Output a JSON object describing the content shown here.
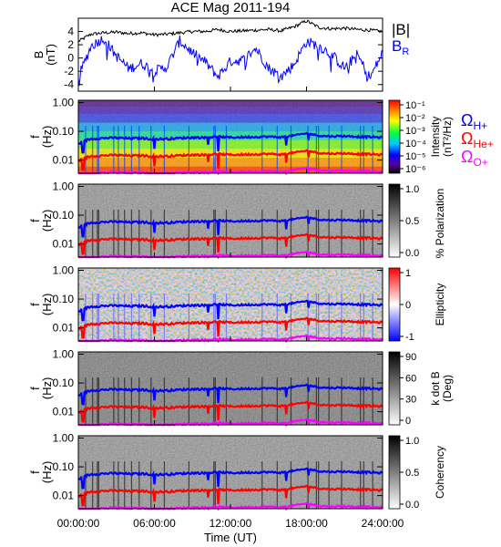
{
  "chart_data": {
    "type": "spectrogram-stack",
    "title": "ACE Mag 2011-194",
    "x_axis": {
      "label": "Time (UT)",
      "range_hours": [
        0,
        24
      ],
      "ticks": [
        {
          "hour": 0,
          "label": "00:00:00"
        },
        {
          "hour": 6,
          "label": "06:00:00"
        },
        {
          "hour": 12,
          "label": "12:00:00"
        },
        {
          "hour": 18,
          "label": "18:00:00"
        },
        {
          "hour": 24,
          "label": "24:00:00"
        }
      ]
    },
    "top_panel": {
      "y_label": "B",
      "y_unit": "(nT)",
      "ylim": [
        -5,
        6
      ],
      "yticks": [
        "4",
        "2",
        "0",
        "-2",
        "-4"
      ],
      "ytick_values": [
        4,
        2,
        0,
        -2,
        -4
      ],
      "series": [
        {
          "name": "|B|",
          "color": "#000000",
          "hours": [
            0,
            1,
            2,
            3,
            4,
            5,
            6,
            7,
            8,
            9,
            10,
            11,
            12,
            13,
            14,
            15,
            16,
            17,
            18,
            19,
            20,
            21,
            22,
            23,
            24
          ],
          "values": [
            2.5,
            3.6,
            3.8,
            3.9,
            3.7,
            3.8,
            3.5,
            3.6,
            3.8,
            4.0,
            4.0,
            4.3,
            4.0,
            4.1,
            4.2,
            4.3,
            4.1,
            4.7,
            5.6,
            4.6,
            4.4,
            4.5,
            4.3,
            4.2,
            4.0
          ]
        },
        {
          "name": "B_R",
          "color": "#0000ff",
          "hours": [
            0,
            1,
            2,
            3,
            4,
            5,
            6,
            7,
            8,
            9,
            10,
            11,
            12,
            13,
            14,
            15,
            16,
            17,
            18,
            19,
            20,
            21,
            22,
            23,
            24
          ],
          "values": [
            -3.0,
            1.8,
            3.0,
            0.3,
            -1.6,
            -0.8,
            -2.0,
            -1.3,
            2.6,
            0.8,
            -0.6,
            -2.8,
            -0.5,
            -0.3,
            1.5,
            -1.5,
            -2.8,
            -1.0,
            2.5,
            1.8,
            0.5,
            -1.5,
            0.5,
            -3.0,
            0.8
          ]
        }
      ]
    },
    "spectral_panels": [
      {
        "id": "intensity",
        "color_label": "Intensity",
        "color_unit": "(nT²/Hz)",
        "colormap": "rainbow",
        "scale_ticks": [
          "10⁻¹",
          "10⁻²",
          "10⁻³",
          "10⁻⁴",
          "10⁻⁵",
          "10⁻⁶"
        ]
      },
      {
        "id": "polarization",
        "color_label": "% Polarization",
        "colormap": "gray",
        "scale_ticks": [
          "1.0",
          "0.5",
          "0.0"
        ]
      },
      {
        "id": "ellipticity",
        "color_label": "Ellipticity",
        "colormap": "blue-white-red",
        "scale_ticks": [
          "1",
          "0",
          "-1"
        ]
      },
      {
        "id": "kdotb",
        "color_label": "k dot B",
        "color_unit": "(Deg)",
        "colormap": "gray",
        "scale_ticks": [
          "90",
          "60",
          "30",
          "0"
        ]
      },
      {
        "id": "coherency",
        "color_label": "Coherency",
        "colormap": "gray",
        "scale_ticks": [
          "1.0",
          "0.5",
          "0.0"
        ]
      }
    ],
    "frequency_axis": {
      "label": "f",
      "unit": "(Hz)",
      "scale": "log",
      "range_hz": [
        0.0035,
        1.2
      ],
      "ticks": [
        {
          "value": 1.0,
          "label": "1.00"
        },
        {
          "value": 0.1,
          "label": "0.10"
        },
        {
          "value": 0.01,
          "label": "0.01"
        }
      ]
    },
    "gyrofrequency_lines": [
      {
        "name": "ΩH+",
        "main": "Ω",
        "sub": "H+",
        "color": "#0000ff",
        "mass_over_charge": 1
      },
      {
        "name": "ΩHe+",
        "main": "Ω",
        "sub": "He+",
        "color": "#ff0000",
        "mass_over_charge": 4
      },
      {
        "name": "ΩO+",
        "main": "Ω",
        "sub": "O+",
        "color": "#ff00ff",
        "mass_over_charge": 16
      }
    ],
    "legend_top": [
      {
        "text": "|B|",
        "color": "#000000"
      },
      {
        "text": "B",
        "sub": "R",
        "color": "#0000ff"
      }
    ]
  }
}
